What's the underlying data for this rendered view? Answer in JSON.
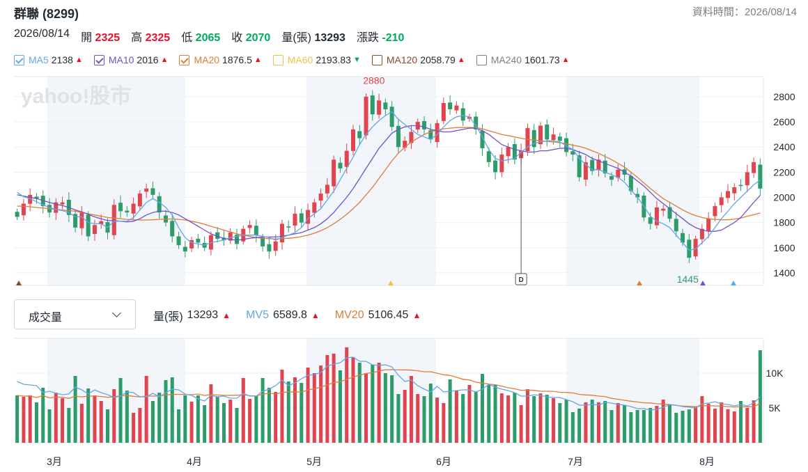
{
  "header": {
    "title": "群聯 (8299)",
    "updated": "資料時間：2026/08/14"
  },
  "quote": {
    "date": "2026/08/14",
    "open_label": "開",
    "open": "2325",
    "high_label": "高",
    "high": "2325",
    "low_label": "低",
    "low": "2065",
    "close_label": "收",
    "close": "2070",
    "volume_label": "量(張)",
    "volume": "13293",
    "change_label": "漲跌",
    "change": "-210"
  },
  "ma_legend": [
    {
      "name": "MA5",
      "value": "2138",
      "dir": "up",
      "color": "#5fa8e8",
      "checked": true
    },
    {
      "name": "MA10",
      "value": "2016",
      "dir": "up",
      "color": "#6f52c9",
      "checked": true
    },
    {
      "name": "MA20",
      "value": "1876.5",
      "dir": "up",
      "color": "#e07b39",
      "checked": true
    },
    {
      "name": "MA60",
      "value": "2193.83",
      "dir": "down",
      "color": "#f0c24a",
      "checked": false
    },
    {
      "name": "MA120",
      "value": "2058.79",
      "dir": "up",
      "color": "#8a4a2b",
      "checked": false
    },
    {
      "name": "MA240",
      "value": "1601.73",
      "dir": "up",
      "color": "#7a7f86",
      "checked": false
    }
  ],
  "indicator": {
    "selected": "成交量",
    "vol_label": "量(張)",
    "vol_value": "13293",
    "mv5_label": "MV5",
    "mv5_value": "6589.8",
    "mv20_label": "MV20",
    "mv20_value": "5106.45"
  },
  "watermark": "yahoo!股市",
  "chart_data": [
    {
      "type": "candlestick",
      "x_month_labels": [
        "3月",
        "4月",
        "5月",
        "6月",
        "7月",
        "8月"
      ],
      "y_ticks": [
        1400,
        1600,
        1800,
        2000,
        2200,
        2400,
        2600,
        2800
      ],
      "ylim": [
        1300,
        2960
      ],
      "annotations": [
        {
          "text": "2880",
          "type": "high"
        },
        {
          "text": "1445",
          "type": "low"
        },
        {
          "text": "D",
          "type": "marker"
        }
      ],
      "closes": [
        1845,
        1950,
        2020,
        1990,
        1930,
        1880,
        1960,
        1960,
        1860,
        1760,
        1880,
        1690,
        1780,
        1810,
        1720,
        1940,
        1890,
        1880,
        1950,
        2030,
        2070,
        2020,
        1880,
        1800,
        1690,
        1620,
        1570,
        1660,
        1640,
        1600,
        1700,
        1670,
        1660,
        1720,
        1630,
        1750,
        1780,
        1700,
        1610,
        1570,
        1650,
        1790,
        1760,
        1870,
        1800,
        1900,
        1960,
        2030,
        2100,
        2300,
        2230,
        2370,
        2540,
        2470,
        2800,
        2660,
        2770,
        2700,
        2560,
        2400,
        2450,
        2520,
        2600,
        2540,
        2460,
        2590,
        2750,
        2700,
        2730,
        2610,
        2640,
        2540,
        2390,
        2280,
        2200,
        2340,
        2400,
        2300,
        2370,
        2550,
        2400,
        2570,
        2460,
        2500,
        2450,
        2360,
        2340,
        2160,
        2280,
        2210,
        2300,
        2190,
        2140,
        2220,
        2180,
        2050,
        2000,
        1840,
        1790,
        1920,
        1910,
        1830,
        1730,
        1640,
        1520,
        1670,
        1750,
        1830,
        1930,
        2000,
        2050,
        2080,
        2090,
        2200,
        2280,
        2070
      ],
      "ma5": [
        2040,
        2005,
        1990,
        1965,
        1940,
        1920,
        1905,
        1895,
        1880,
        1845,
        1845,
        1800,
        1790,
        1790,
        1760,
        1810,
        1810,
        1810,
        1840,
        1900,
        1960,
        1990,
        1960,
        1920,
        1860,
        1760,
        1680,
        1640,
        1630,
        1620,
        1640,
        1650,
        1660,
        1680,
        1690,
        1700,
        1700,
        1700,
        1690,
        1680,
        1660,
        1680,
        1700,
        1720,
        1760,
        1830,
        1870,
        1910,
        1980,
        2050,
        2140,
        2230,
        2320,
        2420,
        2500,
        2560,
        2610,
        2650,
        2680,
        2620,
        2580,
        2540,
        2500,
        2480,
        2460,
        2500,
        2560,
        2610,
        2640,
        2650,
        2640,
        2570,
        2480,
        2380,
        2310,
        2290,
        2300,
        2310,
        2360,
        2400,
        2430,
        2440,
        2450,
        2450,
        2440,
        2410,
        2380,
        2310,
        2260,
        2220,
        2220,
        2200,
        2180,
        2160,
        2120,
        2060,
        2000,
        1930,
        1850,
        1810,
        1790,
        1760,
        1700,
        1640,
        1580,
        1590,
        1640,
        1690,
        1760,
        1830,
        1890,
        1950,
        2000,
        2050,
        2100,
        2138
      ],
      "ma10": [
        2020,
        2010,
        2000,
        1990,
        1975,
        1960,
        1945,
        1935,
        1920,
        1900,
        1885,
        1865,
        1845,
        1830,
        1815,
        1815,
        1810,
        1805,
        1810,
        1830,
        1860,
        1880,
        1890,
        1890,
        1880,
        1860,
        1830,
        1800,
        1770,
        1740,
        1710,
        1690,
        1675,
        1665,
        1660,
        1665,
        1675,
        1680,
        1685,
        1685,
        1685,
        1690,
        1700,
        1710,
        1720,
        1740,
        1760,
        1790,
        1830,
        1880,
        1940,
        2000,
        2070,
        2150,
        2230,
        2310,
        2390,
        2450,
        2510,
        2540,
        2560,
        2570,
        2570,
        2560,
        2540,
        2530,
        2520,
        2520,
        2530,
        2540,
        2550,
        2550,
        2530,
        2500,
        2460,
        2420,
        2400,
        2380,
        2370,
        2360,
        2360,
        2370,
        2370,
        2380,
        2390,
        2390,
        2380,
        2360,
        2340,
        2310,
        2290,
        2270,
        2250,
        2230,
        2200,
        2170,
        2130,
        2090,
        2040,
        1990,
        1950,
        1910,
        1870,
        1830,
        1790,
        1760,
        1740,
        1730,
        1730,
        1740,
        1770,
        1800,
        1840,
        1900,
        1960,
        2016
      ],
      "ma20": [
        1930,
        1930,
        1925,
        1920,
        1915,
        1910,
        1905,
        1900,
        1895,
        1890,
        1880,
        1870,
        1860,
        1850,
        1840,
        1835,
        1830,
        1825,
        1822,
        1820,
        1820,
        1822,
        1825,
        1828,
        1828,
        1825,
        1820,
        1810,
        1800,
        1785,
        1770,
        1755,
        1740,
        1725,
        1710,
        1700,
        1690,
        1680,
        1675,
        1672,
        1670,
        1672,
        1675,
        1680,
        1688,
        1700,
        1715,
        1735,
        1760,
        1790,
        1825,
        1865,
        1910,
        1960,
        2020,
        2080,
        2150,
        2220,
        2290,
        2350,
        2400,
        2440,
        2470,
        2500,
        2520,
        2535,
        2545,
        2550,
        2555,
        2555,
        2555,
        2555,
        2545,
        2530,
        2515,
        2500,
        2490,
        2480,
        2470,
        2460,
        2455,
        2450,
        2445,
        2440,
        2435,
        2425,
        2415,
        2405,
        2390,
        2370,
        2350,
        2325,
        2300,
        2270,
        2240,
        2200,
        2160,
        2115,
        2070,
        2030,
        1990,
        1960,
        1930,
        1900,
        1875,
        1855,
        1840,
        1830,
        1825,
        1822,
        1822,
        1826,
        1835,
        1850,
        1862,
        1876
      ]
    },
    {
      "type": "bar",
      "title": "成交量",
      "y_ticks": [
        "5K",
        "10K"
      ],
      "ylim": [
        0,
        15000
      ],
      "volume": [
        6800,
        6600,
        6800,
        5800,
        7900,
        4800,
        7200,
        6400,
        5000,
        9600,
        5600,
        7800,
        6800,
        6000,
        4800,
        7700,
        9300,
        7500,
        4300,
        5000,
        9600,
        6000,
        7200,
        9000,
        9400,
        4800,
        6800,
        5900,
        6800,
        5400,
        8400,
        6600,
        5700,
        6200,
        5000,
        9300,
        6300,
        6700,
        9300,
        7900,
        7300,
        10500,
        8800,
        9400,
        8600,
        10800,
        10000,
        11100,
        12600,
        12800,
        10400,
        13700,
        12300,
        11500,
        10000,
        11200,
        11500,
        10000,
        9700,
        7000,
        7600,
        9600,
        7000,
        6700,
        8500,
        6500,
        5700,
        9100,
        7500,
        7000,
        8300,
        7300,
        9900,
        8300,
        8300,
        7100,
        6800,
        7200,
        5400,
        7700,
        6700,
        7100,
        6900,
        6400,
        5700,
        6200,
        4400,
        4900,
        5800,
        6200,
        5800,
        6000,
        4700,
        5700,
        5400,
        4400,
        4700,
        4700,
        5000,
        5300,
        6200,
        5500,
        4300,
        4600,
        4800,
        5200,
        6700,
        5600,
        4900,
        5800,
        4800,
        4500,
        6000,
        5000,
        6100,
        13293
      ],
      "mv5": [
        8800,
        8400,
        8300,
        8200,
        7200,
        7400,
        7100,
        6900,
        7000,
        8000,
        7600,
        7000,
        7600,
        7200,
        6900,
        6500,
        6700,
        7300,
        7200,
        6600,
        6600,
        7100,
        6600,
        7200,
        7700,
        7600,
        7000,
        6800,
        6300,
        6000,
        6800,
        6600,
        6700,
        6400,
        6400,
        7100,
        6700,
        6700,
        7400,
        7700,
        8200,
        9000,
        8200,
        8600,
        9200,
        9700,
        9800,
        10100,
        11000,
        11300,
        11500,
        12200,
        12300,
        11700,
        11700,
        11200,
        11100,
        11200,
        10900,
        9700,
        8800,
        9000,
        8200,
        7700,
        7300,
        8100,
        7300,
        7400,
        7500,
        7600,
        7600,
        7300,
        7700,
        8400,
        8000,
        7700,
        7500,
        7200,
        6700,
        6700,
        6900,
        6800,
        6600,
        6500,
        6500,
        6200,
        5900,
        5400,
        5400,
        5500,
        5400,
        5800,
        5700,
        5500,
        5400,
        5200,
        4900,
        4900,
        4700,
        4800,
        5100,
        5500,
        5400,
        5200,
        5100,
        5000,
        5600,
        5700,
        5900,
        5600,
        5500,
        5300,
        5500,
        5300,
        5700,
        6589
      ]
    }
  ]
}
